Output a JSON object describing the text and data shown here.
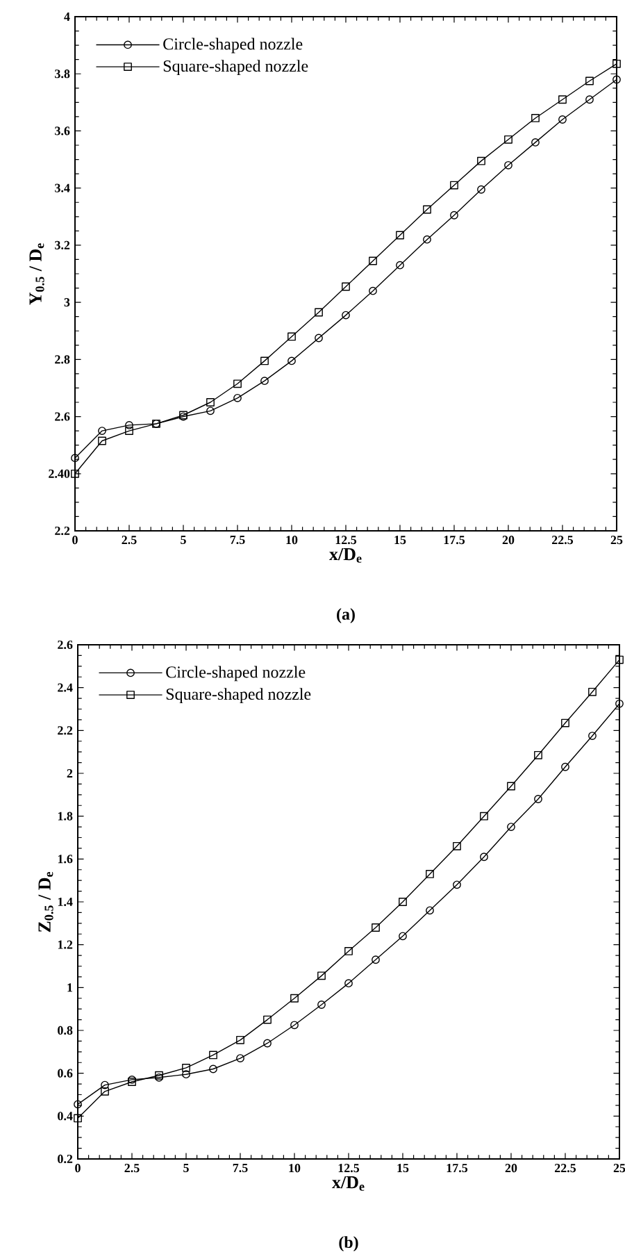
{
  "chart_data": [
    {
      "type": "line",
      "xlabel": "x/D$_{e}$",
      "ylabel": "Y$_{0.5}$ / D$_{e}$",
      "annotations": [
        "(a)"
      ],
      "x": [
        0,
        1.25,
        2.5,
        3.75,
        5,
        6.25,
        7.5,
        8.75,
        10,
        11.25,
        12.5,
        13.75,
        15,
        16.25,
        17.5,
        18.75,
        20,
        21.25,
        22.5,
        23.75,
        25
      ],
      "series": [
        {
          "name": "Circle-shaped nozzle",
          "color": "#000000",
          "marker": "circle",
          "values": [
            2.455,
            2.55,
            2.57,
            2.575,
            2.6,
            2.62,
            2.665,
            2.725,
            2.795,
            2.875,
            2.955,
            3.04,
            3.13,
            3.22,
            3.305,
            3.395,
            3.48,
            3.56,
            3.64,
            3.71,
            3.78
          ]
        },
        {
          "name": "Square-shaped nozzle",
          "color": "#000000",
          "marker": "square",
          "values": [
            2.4,
            2.515,
            2.55,
            2.575,
            2.605,
            2.65,
            2.715,
            2.795,
            2.88,
            2.965,
            3.055,
            3.145,
            3.235,
            3.325,
            3.41,
            3.495,
            3.57,
            3.645,
            3.71,
            3.775,
            3.835
          ]
        }
      ],
      "xlim": [
        0,
        25
      ],
      "ylim": [
        2.2,
        4
      ],
      "xticks": [
        0,
        2.5,
        5,
        7.5,
        10,
        12.5,
        15,
        17.5,
        20,
        22.5,
        25
      ],
      "yticks": [
        2.2,
        {
          "value": 2.4,
          "label": "2.40"
        },
        2.6,
        2.8,
        3,
        3.2,
        3.4,
        3.6,
        3.8,
        4
      ],
      "legend": "top left"
    },
    {
      "type": "line",
      "xlabel": "x/D$_{e}$",
      "ylabel": "Z$_{0.5}$ / D$_{e}$",
      "annotations": [
        "(b)"
      ],
      "x": [
        0,
        1.25,
        2.5,
        3.75,
        5,
        6.25,
        7.5,
        8.75,
        10,
        11.25,
        12.5,
        13.75,
        15,
        16.25,
        17.5,
        18.75,
        20,
        21.25,
        22.5,
        23.75,
        25
      ],
      "series": [
        {
          "name": "Circle-shaped nozzle",
          "color": "#000000",
          "marker": "circle",
          "values": [
            0.455,
            0.545,
            0.57,
            0.58,
            0.595,
            0.62,
            0.67,
            0.74,
            0.825,
            0.92,
            1.02,
            1.13,
            1.24,
            1.36,
            1.48,
            1.61,
            1.75,
            1.88,
            2.03,
            2.175,
            2.325
          ]
        },
        {
          "name": "Square-shaped nozzle",
          "color": "#000000",
          "marker": "square",
          "values": [
            0.39,
            0.515,
            0.56,
            0.59,
            0.625,
            0.685,
            0.755,
            0.85,
            0.95,
            1.055,
            1.17,
            1.28,
            1.4,
            1.53,
            1.66,
            1.8,
            1.94,
            2.085,
            2.235,
            2.38,
            2.53
          ]
        }
      ],
      "xlim": [
        0,
        25
      ],
      "ylim": [
        0.2,
        2.6
      ],
      "xticks": [
        0,
        2.5,
        5,
        7.5,
        10,
        12.5,
        15,
        17.5,
        20,
        22.5,
        25
      ],
      "yticks": [
        0.2,
        0.4,
        0.6,
        0.8,
        1,
        1.2,
        1.4,
        1.6,
        1.8,
        2,
        2.2,
        2.4,
        2.6
      ],
      "legend": "top left"
    }
  ]
}
